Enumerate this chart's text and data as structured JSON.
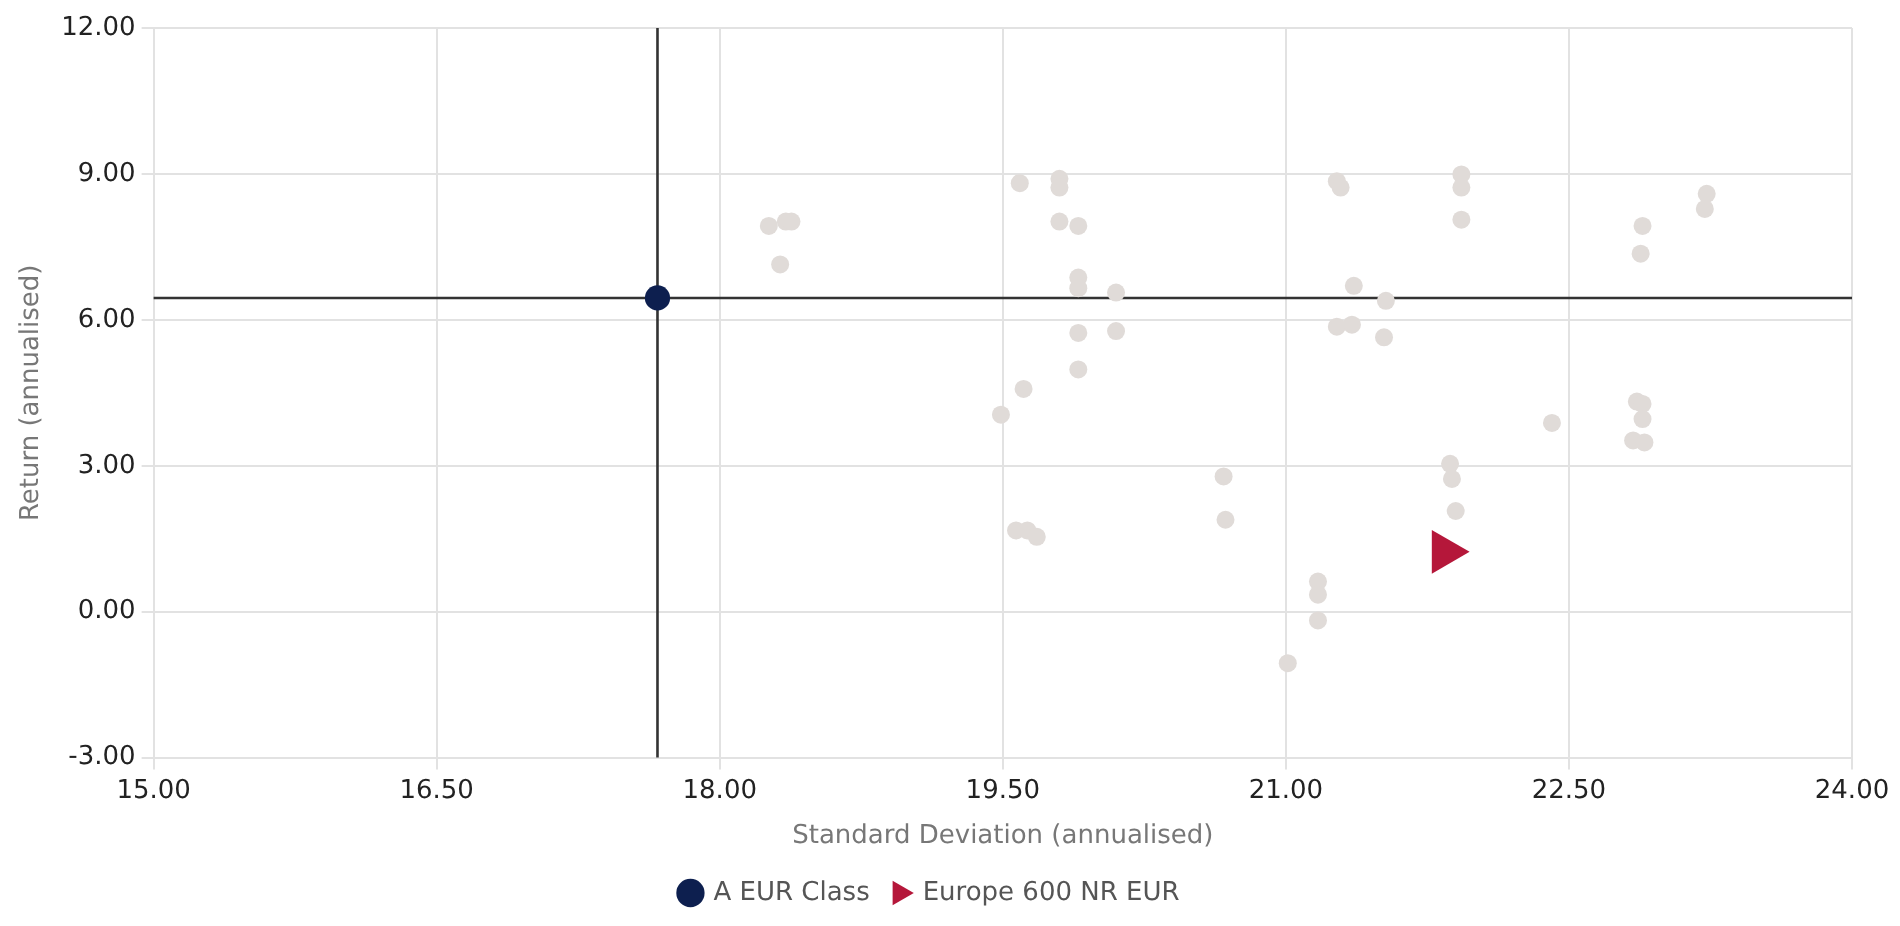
{
  "chart_data": {
    "type": "scatter",
    "xlabel": "Standard Deviation (annualised)",
    "ylabel": "Return (annualised)",
    "xlim": [
      15,
      24
    ],
    "xticks": [
      {
        "value": 15,
        "label": "15.00"
      },
      {
        "value": 16.5,
        "label": "16.50"
      },
      {
        "value": 18,
        "label": "18.00"
      },
      {
        "value": 19.5,
        "label": "19.50"
      },
      {
        "value": 21,
        "label": "21.00"
      },
      {
        "value": 22.5,
        "label": "22.50"
      },
      {
        "value": 24,
        "label": "24.00"
      }
    ],
    "ylim": [
      -3,
      12
    ],
    "yticks": [
      {
        "value": -3,
        "label": "-3.00"
      },
      {
        "value": 0,
        "label": "0.00"
      },
      {
        "value": 3,
        "label": "3.00"
      },
      {
        "value": 6,
        "label": "6.00"
      },
      {
        "value": 9,
        "label": "9.00"
      },
      {
        "value": 12,
        "label": "12.00"
      }
    ],
    "grid": true,
    "legend": "bottom",
    "ref_lines": [
      {
        "axis": "x",
        "value": 17.67,
        "color": "#333333"
      },
      {
        "axis": "y",
        "value": 6.45,
        "color": "#333333"
      }
    ],
    "series": [
      {
        "color": "#e0dbd8",
        "marker": "circle",
        "x": [
          18.26,
          18.35,
          18.38,
          18.32,
          19.59,
          19.8,
          19.8,
          19.8,
          19.9,
          19.9,
          19.9,
          20.1,
          19.9,
          20.1,
          19.9,
          19.61,
          19.49,
          19.57,
          19.63,
          19.68,
          20.67,
          20.68,
          21.27,
          21.29,
          21.93,
          21.93,
          21.93,
          22.89,
          22.88,
          23.23,
          23.22,
          21.36,
          21.53,
          21.27,
          21.35,
          21.52,
          22.86,
          22.89,
          22.89,
          22.84,
          22.9,
          22.41,
          21.87,
          21.88,
          21.9,
          21.17,
          21.17,
          21.17,
          21.01
        ],
        "values": [
          7.93,
          8.02,
          8.02,
          7.14,
          8.81,
          8.9,
          8.72,
          8.02,
          7.93,
          6.87,
          6.65,
          6.56,
          5.73,
          5.77,
          4.98,
          4.58,
          4.05,
          1.67,
          1.67,
          1.54,
          2.78,
          1.89,
          8.85,
          8.72,
          8.99,
          8.72,
          8.06,
          7.93,
          7.36,
          8.59,
          8.28,
          6.7,
          6.39,
          5.86,
          5.9,
          5.64,
          4.32,
          4.27,
          3.96,
          3.52,
          3.48,
          3.88,
          3.04,
          2.73,
          2.07,
          0.62,
          0.35,
          -0.18,
          -1.06
        ]
      },
      {
        "name": "A EUR Class",
        "color": "#0d1f4f",
        "marker": "circle",
        "x": [
          17.67
        ],
        "values": [
          6.45
        ]
      },
      {
        "name": "Europe 600 NR EUR",
        "color": "#b5173a",
        "marker": "triangle",
        "x": [
          21.84
        ],
        "values": [
          1.23
        ]
      }
    ]
  }
}
